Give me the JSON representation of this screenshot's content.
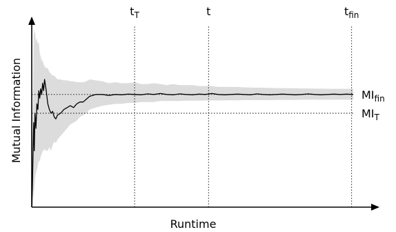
{
  "chart_data": {
    "type": "line",
    "title": "",
    "xlabel": "Runtime",
    "ylabel": "Mutual Information",
    "xlim": [
      0,
      1
    ],
    "ylim": [
      0,
      1
    ],
    "grid": false,
    "x": [
      0.0,
      0.002,
      0.004,
      0.006,
      0.008,
      0.01,
      0.013,
      0.016,
      0.019,
      0.022,
      0.025,
      0.028,
      0.031,
      0.034,
      0.037,
      0.04,
      0.045,
      0.05,
      0.055,
      0.06,
      0.065,
      0.07,
      0.075,
      0.08,
      0.09,
      0.1,
      0.11,
      0.12,
      0.13,
      0.14,
      0.15,
      0.16,
      0.17,
      0.18,
      0.2,
      0.22,
      0.24,
      0.26,
      0.28,
      0.3,
      0.32,
      0.34,
      0.36,
      0.38,
      0.4,
      0.42,
      0.44,
      0.46,
      0.48,
      0.5,
      0.52,
      0.54,
      0.56,
      0.58,
      0.6,
      0.62,
      0.64,
      0.66,
      0.68,
      0.7,
      0.72,
      0.74,
      0.76,
      0.78,
      0.8,
      0.82,
      0.84,
      0.86,
      0.88,
      0.9,
      0.92,
      0.94,
      0.96,
      0.98,
      1.0
    ],
    "series": [
      {
        "role": "mean",
        "values": [
          0.0,
          0.1,
          0.28,
          0.45,
          0.3,
          0.5,
          0.42,
          0.55,
          0.52,
          0.62,
          0.58,
          0.63,
          0.6,
          0.66,
          0.62,
          0.68,
          0.62,
          0.55,
          0.52,
          0.5,
          0.51,
          0.48,
          0.47,
          0.49,
          0.5,
          0.52,
          0.53,
          0.54,
          0.53,
          0.55,
          0.56,
          0.56,
          0.575,
          0.59,
          0.6,
          0.6,
          0.595,
          0.6,
          0.598,
          0.602,
          0.6,
          0.598,
          0.603,
          0.6,
          0.605,
          0.6,
          0.598,
          0.603,
          0.6,
          0.598,
          0.602,
          0.6,
          0.605,
          0.6,
          0.598,
          0.6,
          0.602,
          0.6,
          0.598,
          0.603,
          0.6,
          0.598,
          0.6,
          0.602,
          0.6,
          0.598,
          0.6,
          0.603,
          0.6,
          0.598,
          0.6,
          0.602,
          0.6,
          0.602,
          0.6
        ]
      },
      {
        "role": "band-upper",
        "values": [
          0.05,
          0.3,
          0.65,
          0.95,
          0.92,
          0.94,
          0.88,
          0.9,
          0.87,
          0.88,
          0.82,
          0.8,
          0.78,
          0.78,
          0.76,
          0.75,
          0.74,
          0.74,
          0.72,
          0.71,
          0.7,
          0.7,
          0.69,
          0.68,
          0.68,
          0.675,
          0.675,
          0.67,
          0.67,
          0.665,
          0.665,
          0.665,
          0.67,
          0.68,
          0.675,
          0.67,
          0.66,
          0.665,
          0.66,
          0.66,
          0.665,
          0.655,
          0.655,
          0.66,
          0.655,
          0.65,
          0.655,
          0.65,
          0.65,
          0.65,
          0.645,
          0.645,
          0.645,
          0.64,
          0.64,
          0.64,
          0.64,
          0.638,
          0.637,
          0.636,
          0.636,
          0.635,
          0.634,
          0.634,
          0.633,
          0.633,
          0.632,
          0.632,
          0.631,
          0.631,
          0.63,
          0.63,
          0.63,
          0.63,
          0.63
        ]
      },
      {
        "role": "band-lower",
        "values": [
          0.0,
          0.0,
          0.02,
          0.08,
          0.1,
          0.15,
          0.18,
          0.2,
          0.22,
          0.25,
          0.24,
          0.27,
          0.28,
          0.3,
          0.3,
          0.31,
          0.3,
          0.3,
          0.32,
          0.3,
          0.33,
          0.35,
          0.34,
          0.36,
          0.38,
          0.4,
          0.42,
          0.44,
          0.45,
          0.46,
          0.48,
          0.49,
          0.5,
          0.52,
          0.53,
          0.54,
          0.545,
          0.55,
          0.55,
          0.555,
          0.555,
          0.56,
          0.56,
          0.56,
          0.565,
          0.565,
          0.565,
          0.565,
          0.567,
          0.567,
          0.567,
          0.568,
          0.568,
          0.568,
          0.569,
          0.569,
          0.569,
          0.57,
          0.57,
          0.57,
          0.57,
          0.57,
          0.571,
          0.571,
          0.571,
          0.571,
          0.572,
          0.572,
          0.572,
          0.572,
          0.572,
          0.572,
          0.572,
          0.572,
          0.572
        ]
      }
    ],
    "vlines": [
      {
        "x": 0.32,
        "label": "t",
        "sub": "T"
      },
      {
        "x": 0.55,
        "label": "t",
        "sub": ""
      },
      {
        "x": 0.995,
        "label": "t",
        "sub": "fin"
      }
    ],
    "hlines": [
      {
        "y": 0.6,
        "label": "MI",
        "sub": "fin"
      },
      {
        "y": 0.5,
        "label": "MI",
        "sub": "T"
      }
    ],
    "colors": {
      "band": "#dcdcdc",
      "mean": "#000000",
      "axis": "#000000"
    }
  }
}
